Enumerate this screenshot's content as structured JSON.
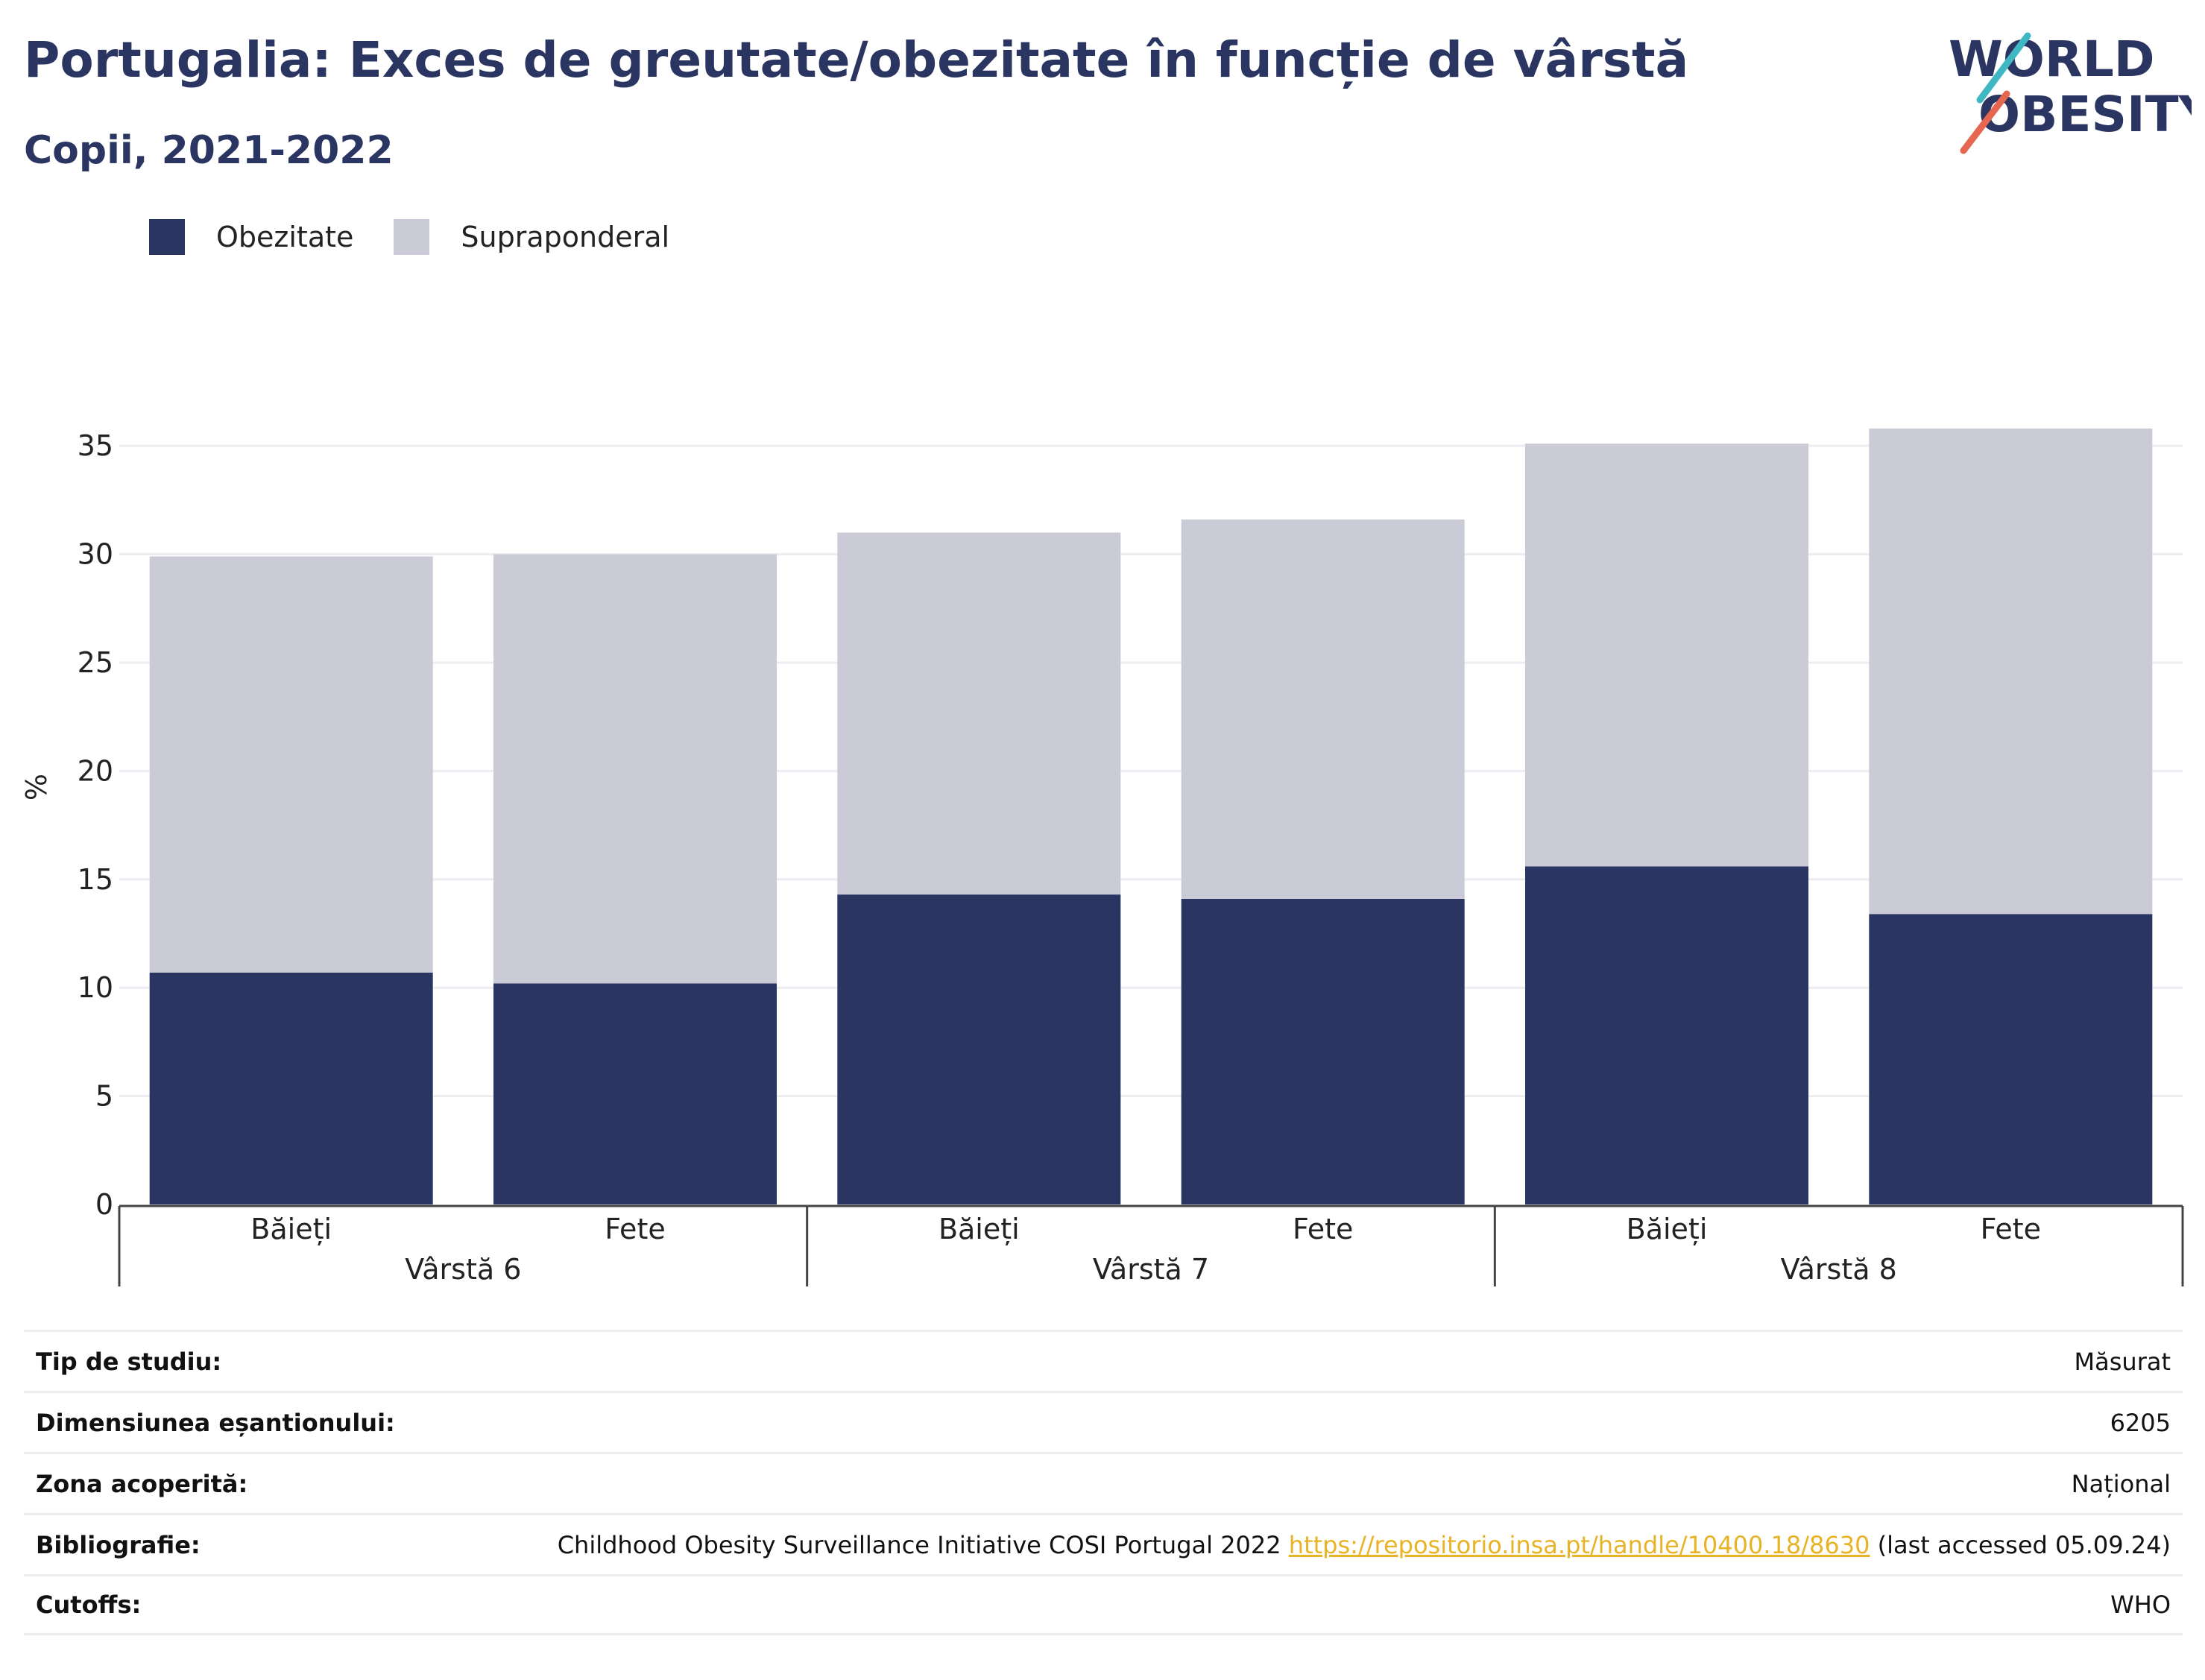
{
  "title": "Portugalia: Exces de greutate/obezitate în funcție de vârstă",
  "subtitle": "Copii, 2021-2022",
  "logo": {
    "line1": "WORLD",
    "line2": "OBESITY"
  },
  "colors": {
    "obesity": "#2a3561",
    "overweight": "#cacbd7",
    "grid": "#ececf1",
    "axis": "#444444"
  },
  "legend": [
    {
      "label": "Obezitate",
      "color": "#2a3561"
    },
    {
      "label": "Supraponderal",
      "color": "#cacbd7"
    }
  ],
  "chart_data": {
    "type": "bar",
    "stacked": true,
    "ylabel": "%",
    "ylim": [
      0,
      37
    ],
    "yticks": [
      "0",
      "5",
      "10",
      "15",
      "20",
      "25",
      "30",
      "35"
    ],
    "groups": [
      "Vârstă 6",
      "Vârstă 7",
      "Vârstă 8"
    ],
    "categories": [
      "Băieți",
      "Fete",
      "Băieți",
      "Fete",
      "Băieți",
      "Fete"
    ],
    "series": [
      {
        "name": "Obezitate",
        "values": [
          10.7,
          10.2,
          14.3,
          14.1,
          15.6,
          13.4
        ]
      },
      {
        "name": "Supraponderal",
        "values": [
          19.2,
          19.8,
          16.7,
          17.5,
          19.5,
          22.4
        ]
      }
    ],
    "grid": true,
    "legend_position": "top-left"
  },
  "info": [
    {
      "label": "Tip de studiu:",
      "value": "Măsurat"
    },
    {
      "label": "Dimensiunea eșantionului:",
      "value": "6205"
    },
    {
      "label": "Zona acoperită:",
      "value": "Național"
    },
    {
      "label": "Bibliografie:",
      "value": "Childhood Obesity Surveillance Initiative COSI Portugal 2022",
      "link": "https://repositorio.insa.pt/handle/10400.18/8630",
      "suffix": "(last accessed 05.09.24)"
    },
    {
      "label": "Cutoffs:",
      "value": "WHO"
    }
  ]
}
